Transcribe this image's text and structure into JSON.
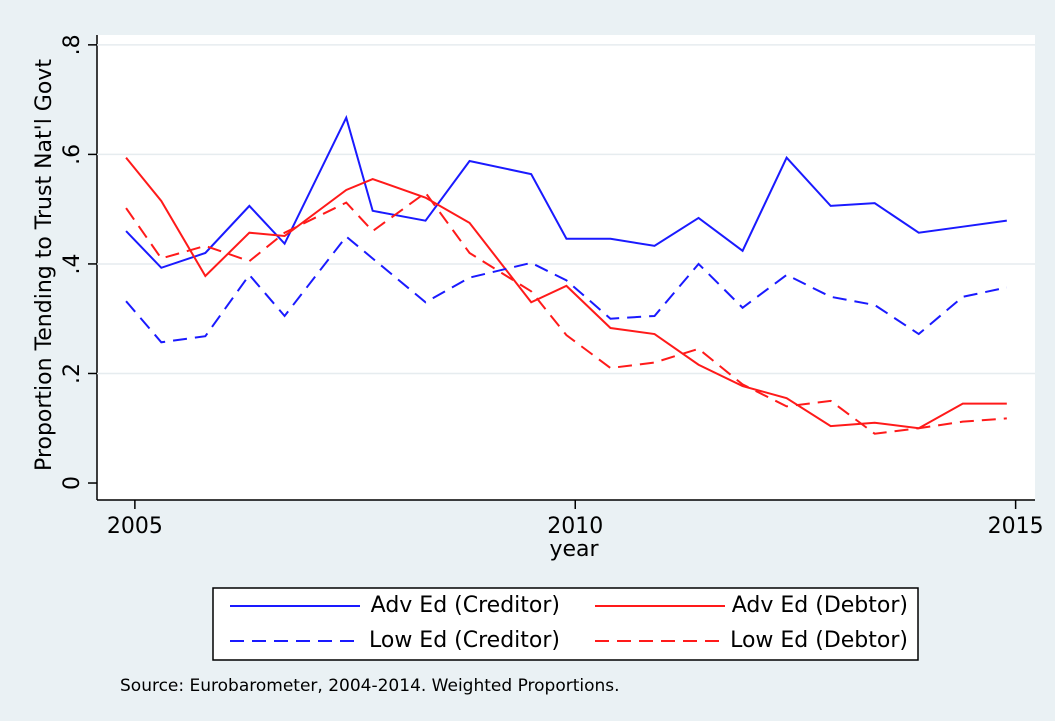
{
  "chart_data": {
    "type": "line",
    "x_label": "year",
    "y_label": "Proportion Tending to Trust Nat'l Govt",
    "note": "Source: Eurobarometer, 2004-2014. Weighted Proportions.",
    "x": [
      2004.9,
      2005.3,
      2005.8,
      2006.3,
      2006.7,
      2007.4,
      2007.7,
      2008.3,
      2008.8,
      2009.5,
      2009.9,
      2010.4,
      2010.9,
      2011.4,
      2011.9,
      2012.4,
      2012.9,
      2013.4,
      2013.9,
      2014.4,
      2014.9
    ],
    "series": [
      {
        "name": "Adv Ed (Creditor)",
        "color": "#1a1aff",
        "line_style": "solid",
        "values": [
          0.46,
          0.393,
          0.42,
          0.506,
          0.437,
          0.667,
          0.497,
          0.479,
          0.588,
          0.564,
          0.446,
          0.446,
          0.433,
          0.484,
          0.424,
          0.594,
          0.506,
          0.511,
          0.457,
          0.468,
          0.479
        ]
      },
      {
        "name": "Adv Ed (Debtor)",
        "color": "#ff1a1a",
        "line_style": "solid",
        "values": [
          0.594,
          0.515,
          0.378,
          0.457,
          0.451,
          0.535,
          0.555,
          0.521,
          0.475,
          0.33,
          0.36,
          0.283,
          0.272,
          0.216,
          0.177,
          0.155,
          0.104,
          0.11,
          0.1,
          0.145,
          0.145
        ]
      },
      {
        "name": "Low Ed (Creditor)",
        "color": "#1a1aff",
        "line_style": "dashed",
        "values": [
          0.332,
          0.257,
          0.268,
          0.38,
          0.305,
          0.45,
          0.41,
          0.33,
          0.375,
          0.402,
          0.37,
          0.3,
          0.305,
          0.4,
          0.32,
          0.38,
          0.34,
          0.325,
          0.272,
          0.34,
          0.357
        ]
      },
      {
        "name": "Low Ed (Debtor)",
        "color": "#ff1a1a",
        "line_style": "dashed",
        "values": [
          0.502,
          0.41,
          0.433,
          0.405,
          0.457,
          0.512,
          0.46,
          0.53,
          0.42,
          0.35,
          0.27,
          0.21,
          0.22,
          0.245,
          0.18,
          0.14,
          0.15,
          0.09,
          0.1,
          0.112,
          0.118
        ]
      }
    ],
    "xlim": [
      2004.57,
      2015.22
    ],
    "ylim": [
      -0.031,
      0.818
    ],
    "xticks": [
      2005,
      2010,
      2015
    ],
    "yticks": [
      0,
      {
        "value": 0.2,
        "label": ".2"
      },
      {
        "value": 0.4,
        "label": ".4"
      },
      {
        "value": 0.6,
        "label": ".6"
      },
      {
        "value": 0.8,
        "label": ".8"
      }
    ],
    "grid": true,
    "legend_position": "bottom"
  }
}
